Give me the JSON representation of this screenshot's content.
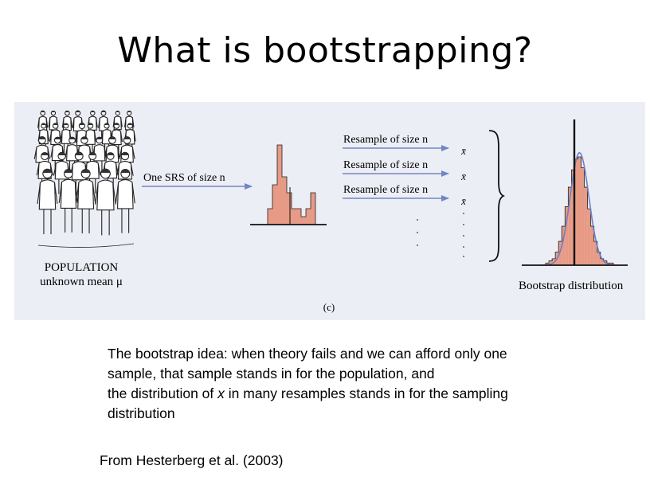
{
  "slide": {
    "title": "What is bootstrapping?"
  },
  "figure": {
    "population_label": "POPULATION",
    "population_sublabel": "unknown mean μ",
    "srs_label": "One SRS of size n",
    "resample_labels": [
      "Resample of size n",
      "Resample of size n",
      "Resample of size n"
    ],
    "xbar_symbol": "x̄",
    "bootstrap_label": "Bootstrap distribution",
    "panel_label": "(c)",
    "colors": {
      "bar_fill": "#e79a85",
      "arrow": "#7385c4",
      "curve": "#6b7fc6",
      "background": "#eceef5"
    },
    "icons": [
      "crowd-illustration",
      "arrow-icon",
      "brace-icon"
    ]
  },
  "caption": {
    "line1": "The bootstrap idea: when theory fails and we can afford only one",
    "line2": "sample, that sample stands in for the population, and",
    "line3_pre": "the distribution of ",
    "line3_var": "x",
    "line3_post": " in many resamples stands in for the sampling",
    "line4": "distribution"
  },
  "reference": "From Hesterberg et al. (2003)",
  "chart_data": [
    {
      "type": "bar",
      "name": "sample",
      "values": [
        2,
        5,
        10,
        6,
        4,
        2,
        2,
        1,
        2,
        4
      ]
    },
    {
      "type": "bar",
      "name": "bootstrap-distribution",
      "values": [
        1,
        2,
        3,
        6,
        11,
        18,
        27,
        36,
        44,
        49,
        50,
        45,
        36,
        26,
        18,
        11,
        6,
        3,
        2,
        1,
        1
      ],
      "curve": true
    }
  ]
}
